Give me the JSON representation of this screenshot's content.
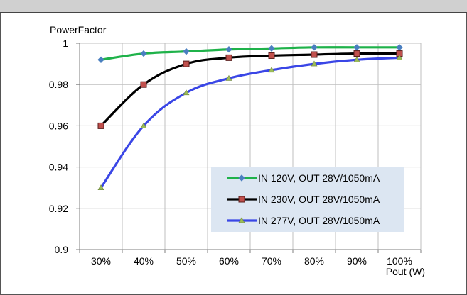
{
  "chart_data": {
    "type": "line",
    "title": "",
    "ylabel": "PowerFactor",
    "xlabel": "Pout (W)",
    "categories": [
      "30%",
      "40%",
      "50%",
      "60%",
      "70%",
      "80%",
      "90%",
      "100%"
    ],
    "ylim": [
      0.9,
      1.0
    ],
    "yticks": [
      0.9,
      0.92,
      0.94,
      0.96,
      0.98,
      1
    ],
    "ytick_labels": [
      "0.9",
      "0.92",
      "0.94",
      "0.96",
      "0.98",
      "1"
    ],
    "grid": true,
    "legend_position": "bottom-right",
    "series": [
      {
        "name": "IN 120V, OUT 28V/1050mA",
        "values": [
          0.992,
          0.995,
          0.996,
          0.997,
          0.9975,
          0.998,
          0.998,
          0.998
        ],
        "color": "#1fb24a",
        "marker": "diamond",
        "marker_color": "#4a7fc0"
      },
      {
        "name": "IN 230V, OUT 28V/1050mA",
        "values": [
          0.96,
          0.98,
          0.99,
          0.993,
          0.994,
          0.9945,
          0.995,
          0.995
        ],
        "color": "#000000",
        "marker": "square",
        "marker_color": "#c0504d"
      },
      {
        "name": "IN 277V, OUT 28V/1050mA",
        "values": [
          0.93,
          0.96,
          0.976,
          0.983,
          0.987,
          0.99,
          0.992,
          0.993
        ],
        "color": "#3a46e6",
        "marker": "triangle",
        "marker_color": "#9bbb59"
      }
    ]
  }
}
